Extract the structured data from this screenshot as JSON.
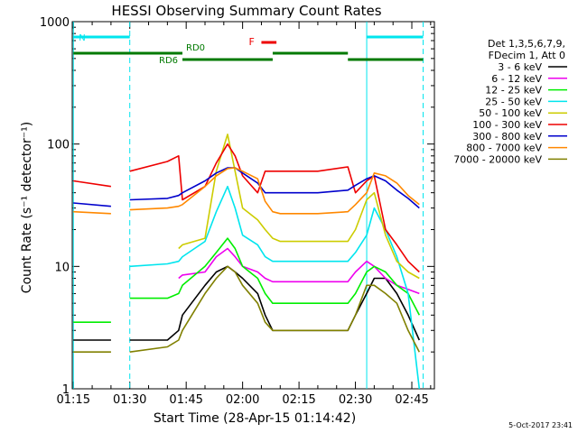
{
  "chart_data": {
    "type": "line",
    "title": "HESSI Observing Summary Count Rates",
    "xlabel": "Start Time (28-Apr-15 01:14:42)",
    "ylabel": "Count Rate (s⁻¹ detector⁻¹)",
    "y_scale": "log",
    "ylim": [
      1,
      1000
    ],
    "xlim": [
      "01:14:42",
      "02:51:00"
    ],
    "x_ticks": [
      "01:15",
      "01:30",
      "01:45",
      "02:00",
      "02:15",
      "02:30",
      "02:45"
    ],
    "y_ticks": [
      "1",
      "10",
      "100",
      "1000"
    ],
    "footer": "5-Oct-2017 23:41",
    "legend": {
      "placement": "right",
      "header": [
        "Det 1,3,5,6,7,9,",
        "FDecim 1, Att 0"
      ]
    },
    "flags": [
      {
        "label": "N",
        "color": "#00e5ee",
        "segments": [
          [
            "01:15",
            "01:30"
          ],
          [
            "02:33",
            "02:48"
          ]
        ]
      },
      {
        "label": "F",
        "color": "#ee0000",
        "segments": [
          [
            "02:05",
            "02:09"
          ]
        ]
      },
      {
        "label": "RD0",
        "color": "#007a00",
        "segments": [
          [
            "01:15",
            "01:44"
          ],
          [
            "02:08",
            "02:28"
          ]
        ]
      },
      {
        "label": "RD6",
        "color": "#007a00",
        "segments": [
          [
            "01:44",
            "02:08"
          ],
          [
            "02:28",
            "02:48"
          ]
        ]
      }
    ],
    "dashed_markers": {
      "color": "#00e5ee",
      "times": [
        "01:30",
        "02:48"
      ]
    },
    "solid_markers": {
      "color": "#00e5ee",
      "times": [
        "01:15",
        "02:33"
      ]
    },
    "x": [
      "01:15",
      "01:25",
      "01:29",
      "01:30",
      "01:40",
      "01:43",
      "01:44",
      "01:50",
      "01:53",
      "01:56",
      "01:58",
      "02:00",
      "02:04",
      "02:06",
      "02:08",
      "02:10",
      "02:20",
      "02:28",
      "02:30",
      "02:33",
      "02:35",
      "02:38",
      "02:41",
      "02:44",
      "02:47"
    ],
    "series": [
      {
        "name": "3 - 6 keV",
        "color": "#000000",
        "values": [
          2.5,
          2.5,
          null,
          2.5,
          2.5,
          3,
          4,
          7,
          9,
          10,
          9,
          8,
          6,
          4,
          3,
          3,
          3,
          3,
          4,
          6,
          8,
          8,
          6,
          4,
          2.5
        ]
      },
      {
        "name": "6 - 12 keV",
        "color": "#ee00ee",
        "values": [
          null,
          null,
          null,
          null,
          null,
          8,
          8.5,
          9,
          12,
          14,
          12,
          10,
          9,
          8,
          7.5,
          7.5,
          7.5,
          7.5,
          9,
          11,
          10,
          8,
          7,
          6.5,
          6
        ]
      },
      {
        "name": "12 - 25 keV",
        "color": "#00ee00",
        "values": [
          3.5,
          3.5,
          null,
          5.5,
          5.5,
          6,
          7,
          10,
          13,
          17,
          14,
          10,
          8,
          6,
          5,
          5,
          5,
          5,
          6,
          9,
          10,
          9,
          7,
          6,
          4
        ]
      },
      {
        "name": "25 - 50 keV",
        "color": "#00e5ee",
        "values": [
          null,
          null,
          null,
          10,
          10.5,
          11,
          12,
          16,
          28,
          45,
          30,
          18,
          15,
          12,
          11,
          11,
          11,
          11,
          13,
          18,
          30,
          20,
          12,
          6,
          1
        ]
      },
      {
        "name": "50 - 100 keV",
        "color": "#cccc00",
        "values": [
          null,
          null,
          null,
          null,
          null,
          14,
          15,
          17,
          60,
          120,
          60,
          30,
          24,
          20,
          17,
          16,
          16,
          16,
          20,
          35,
          40,
          18,
          11,
          9,
          8
        ]
      },
      {
        "name": "100 - 300 keV",
        "color": "#ee0000",
        "values": [
          50,
          45,
          null,
          60,
          72,
          80,
          35,
          45,
          70,
          100,
          80,
          55,
          40,
          60,
          60,
          60,
          60,
          65,
          40,
          50,
          55,
          20,
          15,
          11,
          9
        ]
      },
      {
        "name": "300 - 800 keV",
        "color": "#0000cc",
        "values": [
          33,
          31,
          null,
          35,
          36,
          38,
          40,
          50,
          58,
          64,
          64,
          58,
          48,
          40,
          40,
          40,
          40,
          42,
          46,
          52,
          55,
          50,
          42,
          36,
          30
        ]
      },
      {
        "name": "800 - 7000 keV",
        "color": "#ff8800",
        "values": [
          28,
          27,
          null,
          29,
          30,
          31,
          32,
          45,
          55,
          63,
          64,
          60,
          52,
          34,
          28,
          27,
          27,
          28,
          32,
          40,
          58,
          55,
          48,
          38,
          32
        ]
      },
      {
        "name": "7000 - 20000 keV",
        "color": "#808000",
        "values": [
          2,
          2,
          null,
          2,
          2.2,
          2.5,
          3,
          6,
          8,
          10,
          9,
          7,
          5,
          3.5,
          3,
          3,
          3,
          3,
          4,
          7,
          7,
          6,
          5,
          3,
          2
        ]
      }
    ]
  }
}
